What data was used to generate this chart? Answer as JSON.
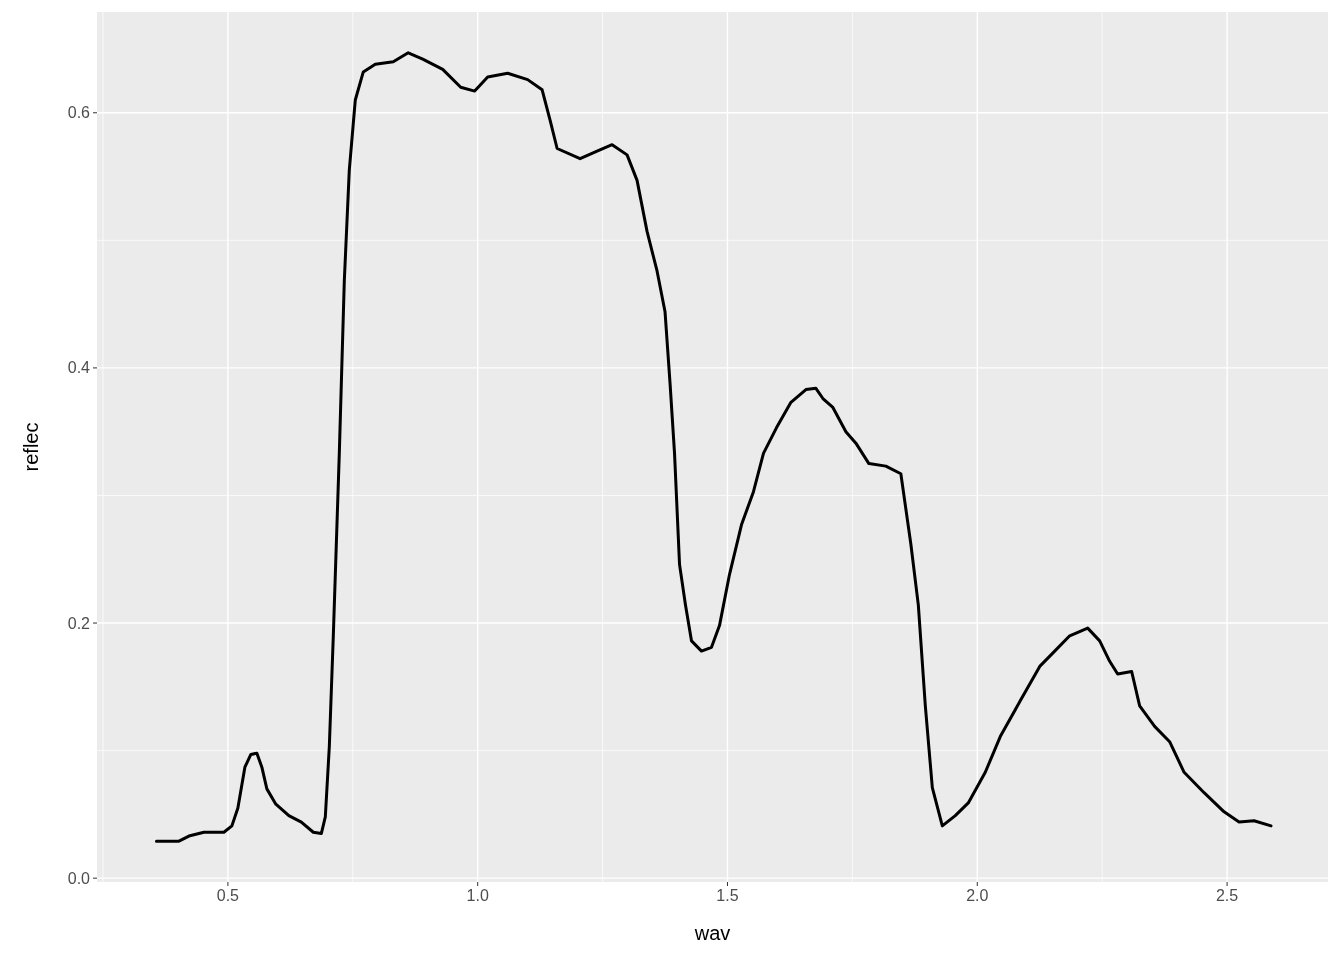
{
  "chart_data": {
    "type": "line",
    "xlabel": "wav",
    "ylabel": "reflec",
    "grid": true,
    "xlim": [
      0.238,
      2.702
    ],
    "ylim": [
      -0.003,
      0.679
    ],
    "xticks": [
      {
        "value": 0.25,
        "label": null
      },
      0.5,
      {
        "value": 0.75,
        "label": null
      },
      {
        "value": 1,
        "label": "1.0"
      },
      {
        "value": 1.25,
        "label": null
      },
      1.5,
      {
        "value": 1.75,
        "label": null
      },
      {
        "value": 2,
        "label": "2.0"
      },
      {
        "value": 2.25,
        "label": null
      },
      2.5
    ],
    "yticks": [
      {
        "value": 0,
        "label": "0.0"
      },
      {
        "value": 0.1,
        "label": null
      },
      0.2,
      {
        "value": 0.3,
        "label": null
      },
      0.4,
      {
        "value": 0.5,
        "label": null
      },
      0.6
    ],
    "x": [
      0.357,
      0.402,
      0.422,
      0.452,
      0.492,
      0.508,
      0.52,
      0.534,
      0.546,
      0.558,
      0.568,
      0.578,
      0.596,
      0.622,
      0.647,
      0.671,
      0.687,
      0.695,
      0.703,
      0.711,
      0.723,
      0.733,
      0.743,
      0.755,
      0.771,
      0.795,
      0.831,
      0.861,
      0.89,
      0.93,
      0.966,
      0.994,
      1.02,
      1.06,
      1.1,
      1.129,
      1.145,
      1.159,
      1.205,
      1.239,
      1.269,
      1.299,
      1.319,
      1.339,
      1.359,
      1.375,
      1.385,
      1.394,
      1.404,
      1.416,
      1.428,
      1.448,
      1.468,
      1.484,
      1.504,
      1.528,
      1.552,
      1.572,
      1.598,
      1.627,
      1.657,
      1.677,
      1.691,
      1.711,
      1.737,
      1.757,
      1.783,
      1.817,
      1.847,
      1.867,
      1.882,
      1.896,
      1.91,
      1.93,
      1.956,
      1.982,
      2.016,
      2.046,
      2.086,
      2.125,
      2.155,
      2.185,
      2.221,
      2.245,
      2.265,
      2.281,
      2.309,
      2.325,
      2.355,
      2.385,
      2.414,
      2.454,
      2.494,
      2.524,
      2.554,
      2.588
    ],
    "series": [
      {
        "color": "#000000",
        "values": [
          0.029,
          0.029,
          0.033,
          0.036,
          0.036,
          0.041,
          0.055,
          0.087,
          0.097,
          0.098,
          0.087,
          0.07,
          0.058,
          0.049,
          0.044,
          0.036,
          0.035,
          0.048,
          0.103,
          0.19,
          0.333,
          0.468,
          0.555,
          0.61,
          0.632,
          0.638,
          0.64,
          0.647,
          0.642,
          0.634,
          0.62,
          0.617,
          0.628,
          0.631,
          0.626,
          0.618,
          0.594,
          0.572,
          0.564,
          0.57,
          0.575,
          0.567,
          0.547,
          0.507,
          0.476,
          0.444,
          0.388,
          0.333,
          0.246,
          0.214,
          0.186,
          0.178,
          0.181,
          0.198,
          0.238,
          0.277,
          0.303,
          0.333,
          0.353,
          0.373,
          0.383,
          0.384,
          0.376,
          0.369,
          0.35,
          0.341,
          0.325,
          0.323,
          0.317,
          0.262,
          0.214,
          0.135,
          0.071,
          0.041,
          0.049,
          0.059,
          0.083,
          0.111,
          0.139,
          0.166,
          0.178,
          0.19,
          0.196,
          0.186,
          0.17,
          0.16,
          0.162,
          0.135,
          0.119,
          0.107,
          0.083,
          0.067,
          0.052,
          0.044,
          0.045,
          0.041
        ]
      }
    ]
  }
}
